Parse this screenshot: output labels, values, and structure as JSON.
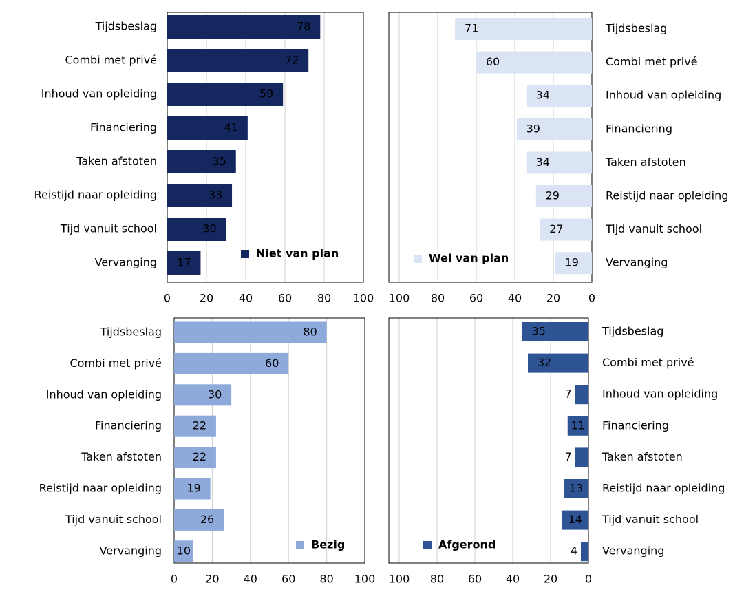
{
  "chart_data": [
    {
      "type": "bar",
      "orientation": "horizontal",
      "categories": [
        "Tijdsbeslag",
        "Combi met privé",
        "Inhoud van opleiding",
        "Financiering",
        "Taken afstoten",
        "Reistijd naar opleiding",
        "Tijd vanuit school",
        "Vervanging"
      ],
      "series": [
        {
          "name": "Niet van plan",
          "color": "#14285f",
          "values": [
            78,
            72,
            59,
            41,
            35,
            33,
            30,
            17
          ]
        }
      ],
      "xlim": [
        0,
        100
      ],
      "xticks": [
        0,
        20,
        40,
        60,
        80,
        100
      ],
      "x_inverted": false,
      "grid": true,
      "legend": "lower right"
    },
    {
      "type": "bar",
      "orientation": "horizontal",
      "categories": [
        "Tijdsbeslag",
        "Combi met privé",
        "Inhoud van opleiding",
        "Financiering",
        "Taken afstoten",
        "Reistijd naar opleiding",
        "Tijd vanuit school",
        "Vervanging"
      ],
      "series": [
        {
          "name": "Wel van plan",
          "color": "#dbe4f4",
          "values": [
            71,
            60,
            34,
            39,
            34,
            29,
            27,
            19
          ]
        }
      ],
      "xlim": [
        0,
        100
      ],
      "xticks": [
        0,
        20,
        40,
        60,
        80,
        100
      ],
      "x_inverted": true,
      "grid": true,
      "legend": "lower left"
    },
    {
      "type": "bar",
      "orientation": "horizontal",
      "categories": [
        "Tijdsbeslag",
        "Combi met privé",
        "Inhoud van opleiding",
        "Financiering",
        "Taken afstoten",
        "Reistijd naar opleiding",
        "Tijd vanuit school",
        "Vervanging"
      ],
      "series": [
        {
          "name": "Bezig",
          "color": "#8eaadb",
          "values": [
            80,
            60,
            30,
            22,
            22,
            19,
            26,
            10
          ]
        }
      ],
      "xlim": [
        0,
        100
      ],
      "xticks": [
        0,
        20,
        40,
        60,
        80,
        100
      ],
      "x_inverted": false,
      "grid": true,
      "legend": "lower right"
    },
    {
      "type": "bar",
      "orientation": "horizontal",
      "categories": [
        "Tijdsbeslag",
        "Combi met privé",
        "Inhoud van opleiding",
        "Financiering",
        "Taken afstoten",
        "Reistijd naar opleiding",
        "Tijd vanuit school",
        "Vervanging"
      ],
      "series": [
        {
          "name": "Afgerond",
          "color": "#2f5496",
          "values": [
            35,
            32,
            7,
            11,
            7,
            13,
            14,
            4
          ]
        }
      ],
      "xlim": [
        0,
        100
      ],
      "xticks": [
        0,
        20,
        40,
        60,
        80,
        100
      ],
      "x_inverted": true,
      "grid": true,
      "legend": "lower left"
    }
  ]
}
